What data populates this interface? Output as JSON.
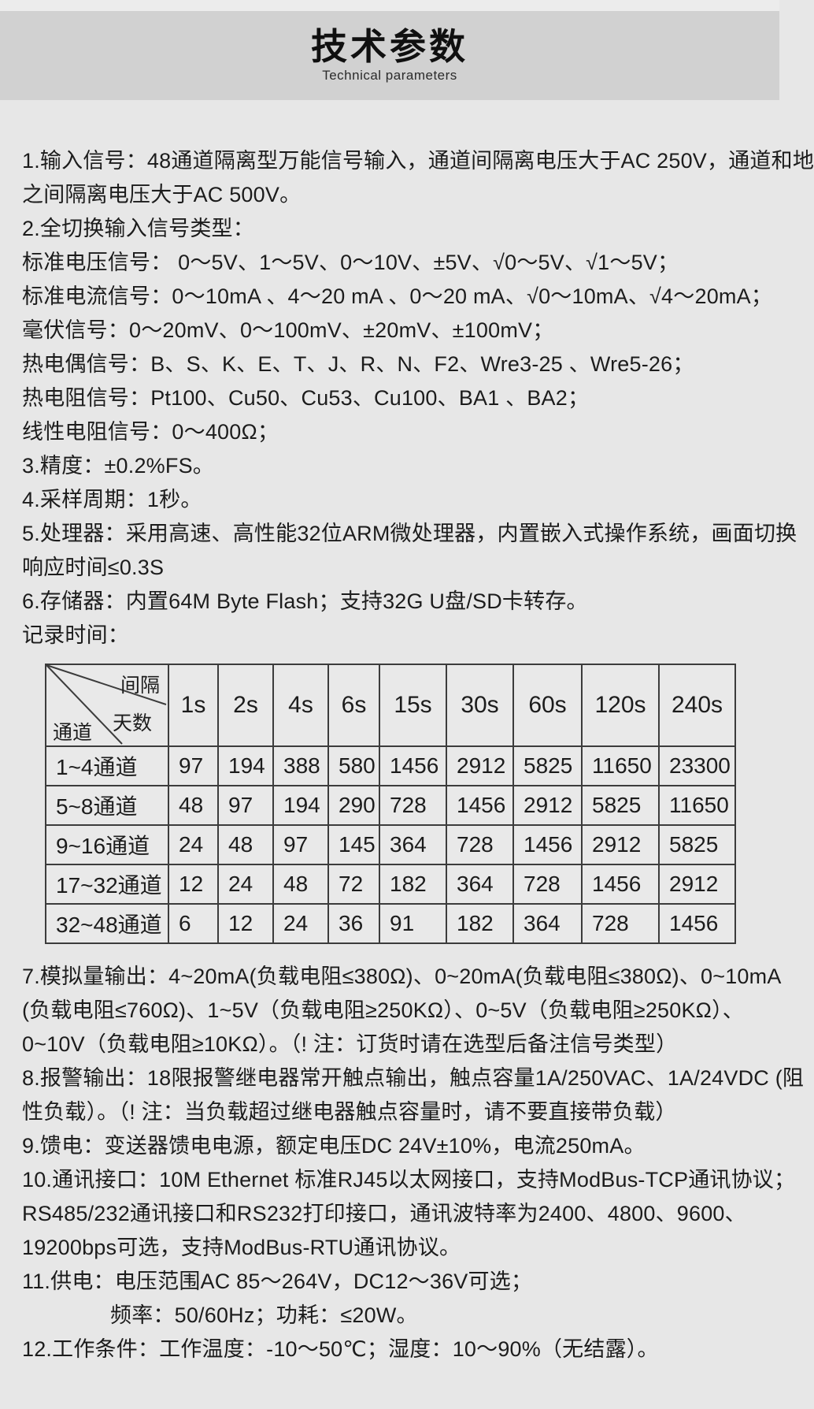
{
  "page": {
    "title": "技术参数",
    "subtitle": "Technical parameters"
  },
  "specs_top": [
    {
      "text": "1.输入信号：48通道隔离型万能信号输入，通道间隔离电压大于AC 250V，通道和地"
    },
    {
      "text": "之间隔离电压大于AC 500V。"
    },
    {
      "text": "2.全切换输入信号类型："
    },
    {
      "text": "标准电压信号： 0～5V、1～5V、0～10V、±5V、√0～5V、√1～5V；"
    },
    {
      "text": "标准电流信号：0～10mA 、4～20 mA 、0～20 mA、√0～10mA、√4～20mA；"
    },
    {
      "text": "毫伏信号：0～20mV、0～100mV、±20mV、±100mV；"
    },
    {
      "text": "热电偶信号：B、S、K、E、T、J、R、N、F2、Wre3-25 、Wre5-26；"
    },
    {
      "text": "热电阻信号：Pt100、Cu50、Cu53、Cu100、BA1 、BA2；"
    },
    {
      "text": "线性电阻信号：0～400Ω；"
    },
    {
      "text": "3.精度：±0.2%FS。"
    },
    {
      "text": "4.采样周期：1秒。"
    },
    {
      "text": "5.处理器：采用高速、高性能32位ARM微处理器，内置嵌入式操作系统，画面切换"
    },
    {
      "text": "响应时间≤0.3S"
    },
    {
      "text": "6.存储器：内置64M Byte Flash；支持32G U盘/SD卡转存。"
    },
    {
      "text": "记录时间："
    }
  ],
  "record_table": {
    "corner": {
      "interval_label": "间隔",
      "days_label": "天数",
      "channel_label": "通道"
    },
    "columns": [
      "1s",
      "2s",
      "4s",
      "6s",
      "15s",
      "30s",
      "60s",
      "120s",
      "240s"
    ],
    "rows": [
      {
        "label": "1~4通道",
        "values": [
          "97",
          "194",
          "388",
          "580",
          "1456",
          "2912",
          "5825",
          "11650",
          "23300"
        ]
      },
      {
        "label": "5~8通道",
        "values": [
          "48",
          "97",
          "194",
          "290",
          "728",
          "1456",
          "2912",
          "5825",
          "11650"
        ]
      },
      {
        "label": "9~16通道",
        "values": [
          "24",
          "48",
          "97",
          "145",
          "364",
          "728",
          "1456",
          "2912",
          "5825"
        ]
      },
      {
        "label": "17~32通道",
        "values": [
          "12",
          "24",
          "48",
          "72",
          "182",
          "364",
          "728",
          "1456",
          "2912"
        ]
      },
      {
        "label": "32~48通道",
        "values": [
          "6",
          "12",
          "24",
          "36",
          "91",
          "182",
          "364",
          "728",
          "1456"
        ]
      }
    ]
  },
  "specs_bottom": [
    {
      "text": "7.模拟量输出：4~20mA(负载电阻≤380Ω)、0~20mA(负载电阻≤380Ω)、0~10mA"
    },
    {
      "text": "(负载电阻≤760Ω)、1~5V（负载电阻≥250KΩ）、0~5V（负载电阻≥250KΩ）、"
    },
    {
      "text": "0~10V（负载电阻≥10KΩ）。（! 注：订货时请在选型后备注信号类型）"
    },
    {
      "text": "8.报警输出：18限报警继电器常开触点输出，触点容量1A/250VAC、1A/24VDC (阻"
    },
    {
      "text": "性负载）。（! 注：当负载超过继电器触点容量时，请不要直接带负载）"
    },
    {
      "text": "9.馈电：变送器馈电电源，额定电压DC 24V±10%，电流250mA。"
    },
    {
      "text": "10.通讯接口：10M  Ethernet 标准RJ45以太网接口，支持ModBus-TCP通讯协议；"
    },
    {
      "text": "RS485/232通讯接口和RS232打印接口，通讯波特率为2400、4800、9600、"
    },
    {
      "text": "19200bps可选，支持ModBus-RTU通讯协议。"
    },
    {
      "text": "11.供电：电压范围AC 85～264V，DC12～36V可选；"
    },
    {
      "text": "频率：50/60Hz；功耗：≤20W。",
      "indent": true
    },
    {
      "text": "12.工作条件：工作温度：-10～50℃；湿度：10～90%（无结露）。"
    }
  ]
}
